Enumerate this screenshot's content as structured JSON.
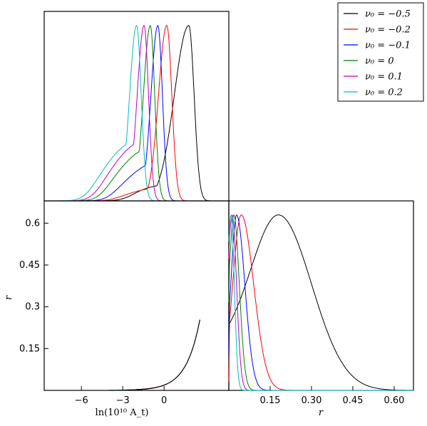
{
  "chart_data": [
    {
      "type": "line",
      "panel": "top-left",
      "title": "",
      "xlabel": "",
      "ylabel": "",
      "xlim": [
        -8.7,
        4.7
      ],
      "ylim": [
        0,
        1.08
      ],
      "x_ticks": [],
      "series": [
        {
          "name": "ν₀ = −0.5",
          "color": "#000000",
          "peak": 1.8,
          "sl": 1.05,
          "sr": 0.38,
          "tail": [
            4.6,
            2.6
          ],
          "tailAmp": 0.1
        },
        {
          "name": "ν₀ = −0.2",
          "color": "#ff0000",
          "peak": 0.2,
          "sl": 0.6,
          "sr": 0.36,
          "tail": [
            2.6,
            2.4
          ],
          "tailAmp": 0.08
        },
        {
          "name": "ν₀ = −0.1",
          "color": "#0000ff",
          "peak": -0.45,
          "sl": 0.5,
          "sr": 0.33,
          "tail": [
            2.2,
            2.2
          ],
          "tailAmp": 0.22
        },
        {
          "name": "ν₀ = 0",
          "color": "#008000",
          "peak": -1.0,
          "sl": 0.5,
          "sr": 0.32,
          "tail": [
            2.3,
            2.2
          ],
          "tailAmp": 0.3
        },
        {
          "name": "ν₀ = 0.1",
          "color": "#bf00bf",
          "peak": -1.45,
          "sl": 0.5,
          "sr": 0.32,
          "tail": [
            2.3,
            2.2
          ],
          "tailAmp": 0.34
        },
        {
          "name": "ν₀ = 0.2",
          "color": "#00bfbf",
          "peak": -2.0,
          "sl": 0.5,
          "sr": 0.34,
          "tail": [
            2.3,
            2.2
          ],
          "tailAmp": 0.34
        }
      ]
    },
    {
      "type": "line",
      "panel": "bottom-left",
      "xlabel": "ln(10¹⁰ A_t)",
      "ylabel": "r",
      "xlim": [
        -8.7,
        4.7
      ],
      "ylim": [
        0,
        0.68
      ],
      "x_ticks": [
        "−6",
        "−3",
        "0"
      ],
      "x_tick_values": [
        -6,
        -3,
        0
      ],
      "y_ticks": [
        "0.15",
        "0.3",
        "0.45",
        "0.6"
      ],
      "y_tick_values": [
        0.15,
        0.3,
        0.45,
        0.6
      ],
      "relation": "r = 0.0023 · exp(lnAt)",
      "segments": [
        {
          "color": "#00bfbf",
          "x": [
            -3.5,
            -2.3
          ]
        },
        {
          "color": "#bf00bf",
          "x": [
            -3.0,
            -1.8
          ]
        },
        {
          "color": "#008000",
          "x": [
            -2.5,
            -1.2
          ]
        },
        {
          "color": "#0000ff",
          "x": [
            -2.0,
            -0.7
          ]
        },
        {
          "color": "#ff0000",
          "x": [
            -1.6,
            0.2
          ]
        },
        {
          "color": "#000000",
          "x": [
            -4.0,
            2.6
          ]
        }
      ]
    },
    {
      "type": "line",
      "panel": "bottom-right",
      "xlabel": "r",
      "ylabel": "",
      "xlim": [
        0,
        0.67
      ],
      "ylim": [
        0,
        1.08
      ],
      "x_ticks": [
        "0.15",
        "0.30",
        "0.45",
        "0.60"
      ],
      "x_tick_values": [
        0.15,
        0.3,
        0.45,
        0.6
      ],
      "series": [
        {
          "color": "#000000",
          "peak": 0.18,
          "sl": 0.1,
          "sr": 0.12,
          "y0": 0.22
        },
        {
          "color": "#ff0000",
          "peak": 0.045,
          "sl": 0.03,
          "sr": 0.045,
          "y0": 0.05
        },
        {
          "color": "#0000ff",
          "peak": 0.028,
          "sl": 0.018,
          "sr": 0.03,
          "y0": 0.2
        },
        {
          "color": "#008000",
          "peak": 0.018,
          "sl": 0.012,
          "sr": 0.02,
          "y0": 0.5
        },
        {
          "color": "#bf00bf",
          "peak": 0.012,
          "sl": 0.008,
          "sr": 0.016,
          "y0": 0.75
        },
        {
          "color": "#00bfbf",
          "peak": 0.008,
          "sl": 0.005,
          "sr": 0.012,
          "y0": 0.85
        }
      ]
    }
  ],
  "legend": {
    "placement": "top-right",
    "entries": [
      {
        "label": "ν₀ = −0.5",
        "color": "#000000"
      },
      {
        "label": "ν₀ = −0.2",
        "color": "#ff0000"
      },
      {
        "label": "ν₀ = −0.1",
        "color": "#0000ff"
      },
      {
        "label": "ν₀ = 0",
        "color": "#008000"
      },
      {
        "label": "ν₀ = 0.1",
        "color": "#bf00bf"
      },
      {
        "label": "ν₀ = 0.2",
        "color": "#00bfbf"
      }
    ]
  }
}
